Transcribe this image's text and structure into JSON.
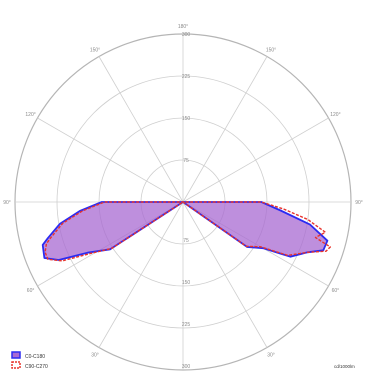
{
  "chart_data": {
    "type": "polar",
    "angle_labels": [
      "180°",
      "150°",
      "120°",
      "90°",
      "60°",
      "30°",
      "0°",
      "30°",
      "60°",
      "90°",
      "120°",
      "150°"
    ],
    "radial_labels": [
      "75",
      "150",
      "225",
      "300"
    ],
    "radial_max": 300,
    "series": [
      {
        "name": "C0-C180",
        "color": "#2b2bf2",
        "fill": "#a86ad2",
        "points": [
          {
            "angle": 0,
            "r": 0
          },
          {
            "angle": 55,
            "r": 140
          },
          {
            "angle": 60,
            "r": 165
          },
          {
            "angle": 63,
            "r": 215
          },
          {
            "angle": 68,
            "r": 240
          },
          {
            "angle": 71,
            "r": 265
          },
          {
            "angle": 75,
            "r": 267
          },
          {
            "angle": 80,
            "r": 230
          },
          {
            "angle": 85,
            "r": 175
          },
          {
            "angle": 90,
            "r": 140
          },
          {
            "angle": 100,
            "r": 0
          },
          {
            "angle": -100,
            "r": 0
          },
          {
            "angle": -90,
            "r": 145
          },
          {
            "angle": -85,
            "r": 185
          },
          {
            "angle": -80,
            "r": 223
          },
          {
            "angle": -75,
            "r": 250
          },
          {
            "angle": -73,
            "r": 262
          },
          {
            "angle": -68,
            "r": 267
          },
          {
            "angle": -65,
            "r": 245
          },
          {
            "angle": -62,
            "r": 193
          },
          {
            "angle": -57,
            "r": 155
          }
        ]
      },
      {
        "name": "C90-C270",
        "color": "#e8332c",
        "fill": "none",
        "points": [
          {
            "angle": 0,
            "r": 0
          },
          {
            "angle": 55,
            "r": 138
          },
          {
            "angle": 60,
            "r": 160
          },
          {
            "angle": 63,
            "r": 210
          },
          {
            "angle": 68,
            "r": 240
          },
          {
            "angle": 71,
            "r": 270
          },
          {
            "angle": 73,
            "r": 275
          },
          {
            "angle": 75,
            "r": 245
          },
          {
            "angle": 78,
            "r": 260
          },
          {
            "angle": 82,
            "r": 225
          },
          {
            "angle": 86,
            "r": 180
          },
          {
            "angle": 90,
            "r": 140
          },
          {
            "angle": 100,
            "r": 0
          },
          {
            "angle": -100,
            "r": 0
          },
          {
            "angle": -90,
            "r": 140
          },
          {
            "angle": -85,
            "r": 180
          },
          {
            "angle": -80,
            "r": 218
          },
          {
            "angle": -75,
            "r": 244
          },
          {
            "angle": -73,
            "r": 255
          },
          {
            "angle": -70,
            "r": 262
          },
          {
            "angle": -67,
            "r": 262
          },
          {
            "angle": -64,
            "r": 240
          },
          {
            "angle": -61,
            "r": 190
          },
          {
            "angle": -57,
            "r": 152
          }
        ]
      }
    ],
    "legend": [
      "C0-C180",
      "C90-C270"
    ],
    "footer_text": "cd/1000lm"
  }
}
